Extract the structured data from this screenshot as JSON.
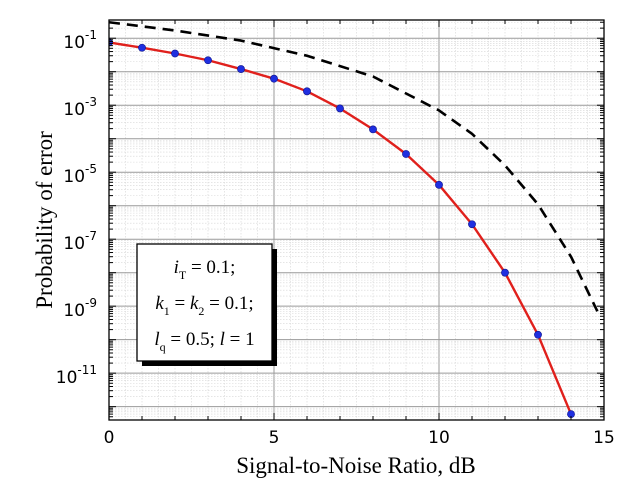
{
  "chart_data": {
    "type": "line",
    "xlabel": "Signal-to-Noise Ratio, dB",
    "ylabel": "Probability of error",
    "xlim": [
      0,
      15
    ],
    "ylim": [
      4e-13,
      0.35
    ],
    "yscale": "log",
    "grid": true,
    "xticks": [
      "0",
      "5",
      "10",
      "15"
    ],
    "yticks": [
      {
        "base": "10",
        "exp": "-1"
      },
      {
        "base": "10",
        "exp": "-3"
      },
      {
        "base": "10",
        "exp": "-5"
      },
      {
        "base": "10",
        "exp": "-7"
      },
      {
        "base": "10",
        "exp": "-9"
      },
      {
        "base": "10",
        "exp": "-11"
      }
    ],
    "series": [
      {
        "style": "solid-with-markers",
        "line_color": "#e0201c",
        "marker_color": "#1f2fe0",
        "x": [
          0,
          1,
          2,
          3,
          4,
          5,
          6,
          7,
          8,
          9,
          10,
          11,
          12,
          13,
          14
        ],
        "y": [
          0.075,
          0.052,
          0.035,
          0.022,
          0.012,
          0.0062,
          0.0026,
          0.0008,
          0.00019,
          3.5e-05,
          4.2e-06,
          2.8e-07,
          1e-08,
          1.4e-10,
          6e-13
        ]
      },
      {
        "style": "dashed",
        "line_color": "#000000",
        "x": [
          0,
          2,
          4,
          6,
          8,
          10,
          11,
          12,
          13,
          14,
          14.8
        ],
        "y": [
          0.3,
          0.17,
          0.085,
          0.03,
          0.0072,
          0.0007,
          0.00014,
          1.6e-05,
          1.1e-06,
          3e-08,
          7e-10
        ]
      }
    ],
    "legend": {
      "placement": "bottom-left",
      "lines": [
        [
          {
            "t": "i",
            "i": true
          },
          {
            "t": "T",
            "sub": true
          },
          {
            "t": " = 0.1;"
          }
        ],
        [
          {
            "t": "k",
            "i": true
          },
          {
            "t": "1",
            "sub": true
          },
          {
            "t": " = "
          },
          {
            "t": "k",
            "i": true
          },
          {
            "t": "2",
            "sub": true
          },
          {
            "t": " = 0.1;"
          }
        ],
        [
          {
            "t": "l",
            "i": true
          },
          {
            "t": "q",
            "sub": true
          },
          {
            "t": " = 0.5; "
          },
          {
            "t": "l",
            "i": true
          },
          {
            "t": " = 1"
          }
        ]
      ]
    }
  }
}
